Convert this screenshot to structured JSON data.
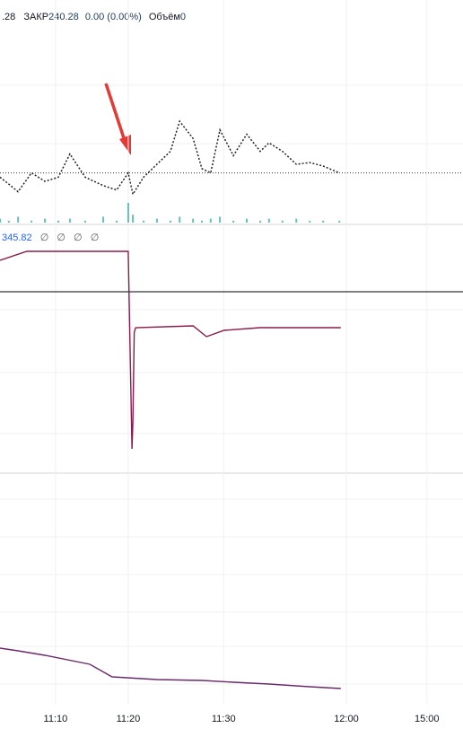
{
  "chart_data": [
    {
      "type": "line",
      "legend": {
        "prefix": ".28",
        "close_label": "ЗАКР",
        "close": "240.28",
        "change": "0.00 (0.00%)",
        "volume_label": "Объём",
        "volume": "0"
      },
      "ylim": [
        0,
        100
      ],
      "grid": true,
      "series": [
        {
          "name": "price",
          "color": "#222222",
          "x": [
            0,
            1.9,
            3.9,
            6.8,
            9.7,
            12.6,
            15.1,
            18.4,
            22.3,
            25.2,
            27.7,
            28.7,
            31,
            33.9,
            36.8,
            38.8,
            41.7,
            43.6,
            45.5,
            47.5,
            50.4,
            53.3,
            56.2,
            58.1,
            61,
            64,
            66.9,
            69.8,
            73.3
          ],
          "values": [
            23.2,
            19.7,
            15.8,
            25.4,
            21.1,
            23.2,
            35.1,
            23.2,
            18.9,
            16.7,
            25.4,
            14.5,
            23.2,
            29.8,
            36.4,
            51.8,
            43,
            27.6,
            25.4,
            47.4,
            34.2,
            45.2,
            36.4,
            40.8,
            36.4,
            29.8,
            30.7,
            28.9,
            25.4
          ]
        },
        {
          "name": "volume",
          "type": "bar",
          "color": "#26a69a",
          "x": [
            0,
            1.9,
            3.9,
            6.8,
            9.7,
            12.6,
            15.1,
            18.4,
            22.3,
            25.2,
            27.7,
            28.7,
            31,
            33.9,
            36.8,
            38.8,
            41.7,
            43.6,
            45.5,
            47.5,
            50.4,
            53.3,
            56.2,
            58.1,
            61,
            64,
            66.9,
            69.8,
            73.3
          ],
          "values": [
            2,
            1,
            3,
            1,
            2,
            1,
            2,
            1,
            3,
            1,
            10,
            4,
            1,
            2,
            1,
            3,
            2,
            1,
            2,
            3,
            1,
            2,
            1,
            2,
            1,
            2,
            1,
            1,
            1
          ]
        }
      ]
    },
    {
      "type": "line",
      "legend": {
        "value": "345.82",
        "na": [
          "∅",
          "∅",
          "∅",
          "∅"
        ]
      },
      "ylim": [
        0,
        100
      ],
      "level": 78,
      "grid": true,
      "series": [
        {
          "name": "indicator",
          "color": "#8b1a4a",
          "x": [
            0,
            5.8,
            27.7,
            28.5,
            28.7,
            29,
            29.3,
            41.7,
            44.6,
            48.4,
            56.2,
            73.6
          ],
          "values": [
            92,
            96,
            96,
            8,
            20,
            60,
            62,
            62.8,
            58,
            60.8,
            62,
            62
          ]
        }
      ]
    },
    {
      "type": "line",
      "ylim": [
        0,
        100
      ],
      "grid": true,
      "xlim": [
        0,
        100
      ],
      "xticks": [
        {
          "value": 12,
          "label": "11:10"
        },
        {
          "value": 27.7,
          "label": "11:20"
        },
        {
          "value": 48.3,
          "label": "11:30"
        },
        {
          "value": 74.8,
          "label": "12:00"
        },
        {
          "value": 92.2,
          "label": "15:00"
        }
      ],
      "series": [
        {
          "name": "trend",
          "color": "#6a2a6a",
          "x": [
            0,
            3.9,
            9.7,
            19.4,
            24.2,
            33.9,
            43.6,
            50.4,
            58.1,
            66.9,
            73.6
          ],
          "values": [
            27.2,
            26,
            24,
            20,
            14.4,
            13.2,
            12.8,
            12,
            11.2,
            10,
            9.2
          ]
        }
      ]
    }
  ]
}
